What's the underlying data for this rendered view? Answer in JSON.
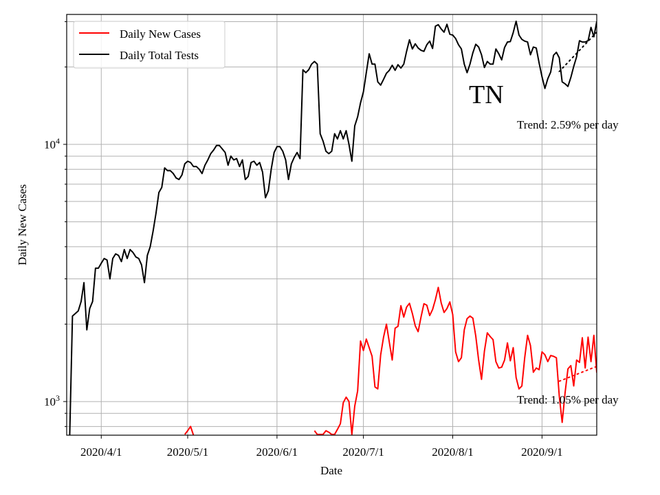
{
  "chart_data": {
    "type": "line",
    "title": "",
    "xlabel": "Date",
    "ylabel": "Daily New Cases",
    "yscale": "log",
    "ylim": [
      740,
      32000
    ],
    "xlim": [
      "2020-03-20",
      "2020-09-20"
    ],
    "grid": true,
    "legend_position": "top-left",
    "x_ticks": [
      {
        "date": "2020-04-01",
        "label": "2020/4/1"
      },
      {
        "date": "2020-05-01",
        "label": "2020/5/1"
      },
      {
        "date": "2020-06-01",
        "label": "2020/6/1"
      },
      {
        "date": "2020-07-01",
        "label": "2020/7/1"
      },
      {
        "date": "2020-08-01",
        "label": "2020/8/1"
      },
      {
        "date": "2020-09-01",
        "label": "2020/9/1"
      }
    ],
    "y_ticks": [
      {
        "value": 1000,
        "label_base": "10",
        "label_exp": "3"
      },
      {
        "value": 10000,
        "label_base": "10",
        "label_exp": "4"
      }
    ],
    "annotation_state": "TN",
    "series": [
      {
        "name": "Daily New Cases",
        "color": "#ff0000",
        "start_date": "2020-04-30",
        "values": [
          745,
          770,
          800,
          740,
          null,
          null,
          null,
          null,
          null,
          null,
          null,
          null,
          null,
          null,
          null,
          null,
          null,
          null,
          null,
          null,
          null,
          null,
          null,
          null,
          null,
          null,
          null,
          null,
          null,
          null,
          null,
          null,
          null,
          null,
          null,
          null,
          null,
          null,
          null,
          null,
          null,
          null,
          null,
          null,
          null,
          770,
          745,
          745,
          745,
          770,
          760,
          745,
          745,
          780,
          820,
          990,
          1040,
          1000,
          745,
          960,
          1100,
          1720,
          1580,
          1750,
          1620,
          1500,
          1140,
          1120,
          1520,
          1780,
          2000,
          1700,
          1450,
          1930,
          1960,
          2360,
          2130,
          2330,
          2410,
          2200,
          1970,
          1870,
          2130,
          2400,
          2370,
          2160,
          2280,
          2490,
          2780,
          2420,
          2220,
          2300,
          2440,
          2180,
          1560,
          1430,
          1480,
          1900,
          2100,
          2150,
          2110,
          1800,
          1450,
          1220,
          1570,
          1850,
          1790,
          1740,
          1430,
          1350,
          1360,
          1450,
          1690,
          1440,
          1620,
          1240,
          1120,
          1150,
          1480,
          1810,
          1650,
          1300,
          1350,
          1330,
          1560,
          1520,
          1430,
          1510,
          1500,
          1480,
          1050,
          830,
          1080,
          1340,
          1380,
          1150,
          1450,
          1420,
          1770,
          1350,
          1780,
          1430,
          1810,
          1300,
          1270,
          800
        ],
        "trend": {
          "rate_label": "Trend: 1.05% per day",
          "start_date": "2020-09-07",
          "end_date": "2020-09-20",
          "start_value": 1200,
          "end_value": 1370
        }
      },
      {
        "name": "Daily Total Tests",
        "color": "#000000",
        "start_date": "2020-03-21",
        "values": [
          700,
          2150,
          2200,
          2250,
          2450,
          2900,
          1900,
          2300,
          2450,
          3300,
          3300,
          3450,
          3600,
          3550,
          3000,
          3600,
          3750,
          3700,
          3500,
          3900,
          3600,
          3900,
          3800,
          3650,
          3600,
          3400,
          2900,
          3700,
          4000,
          4600,
          5400,
          6500,
          6800,
          8100,
          7900,
          7900,
          7700,
          7400,
          7300,
          7600,
          8400,
          8600,
          8500,
          8200,
          8200,
          8000,
          7700,
          8300,
          8700,
          9200,
          9500,
          9900,
          9900,
          9600,
          9300,
          8300,
          9000,
          8700,
          8800,
          8200,
          8700,
          7300,
          7500,
          8500,
          8600,
          8300,
          8500,
          7800,
          6200,
          6600,
          8000,
          9300,
          9800,
          9800,
          9400,
          8700,
          7300,
          8400,
          8900,
          9300,
          8800,
          19500,
          19000,
          19500,
          20500,
          21000,
          20500,
          11000,
          10300,
          9400,
          9200,
          9400,
          11000,
          10500,
          11300,
          10500,
          11300,
          10000,
          8600,
          11800,
          12800,
          14500,
          16000,
          19000,
          22500,
          20500,
          20500,
          17500,
          17000,
          17900,
          18900,
          19400,
          20300,
          19400,
          20400,
          19800,
          20500,
          23000,
          25500,
          23500,
          24600,
          23700,
          23200,
          23000,
          24400,
          25200,
          23600,
          28800,
          29200,
          28100,
          27300,
          29300,
          26800,
          26600,
          25800,
          24400,
          23500,
          20500,
          19000,
          20500,
          22700,
          24500,
          23900,
          22300,
          19900,
          21000,
          20500,
          20500,
          23500,
          22500,
          21300,
          23800,
          25000,
          25100,
          27200,
          30100,
          26600,
          25600,
          25200,
          25000,
          22300,
          23900,
          23700,
          20700,
          18300,
          16500,
          18000,
          19100,
          22200,
          22800,
          21700,
          17500,
          17200,
          16800,
          18200,
          20100,
          21900,
          25300,
          25000,
          25000,
          25300,
          28500,
          26200,
          30000,
          27000,
          25300,
          22300,
          21800
        ],
        "trend": {
          "rate_label": "Trend: 2.59% per day",
          "start_date": "2020-09-07",
          "end_date": "2020-09-20",
          "start_value": 19200,
          "end_value": 27300
        }
      }
    ]
  }
}
